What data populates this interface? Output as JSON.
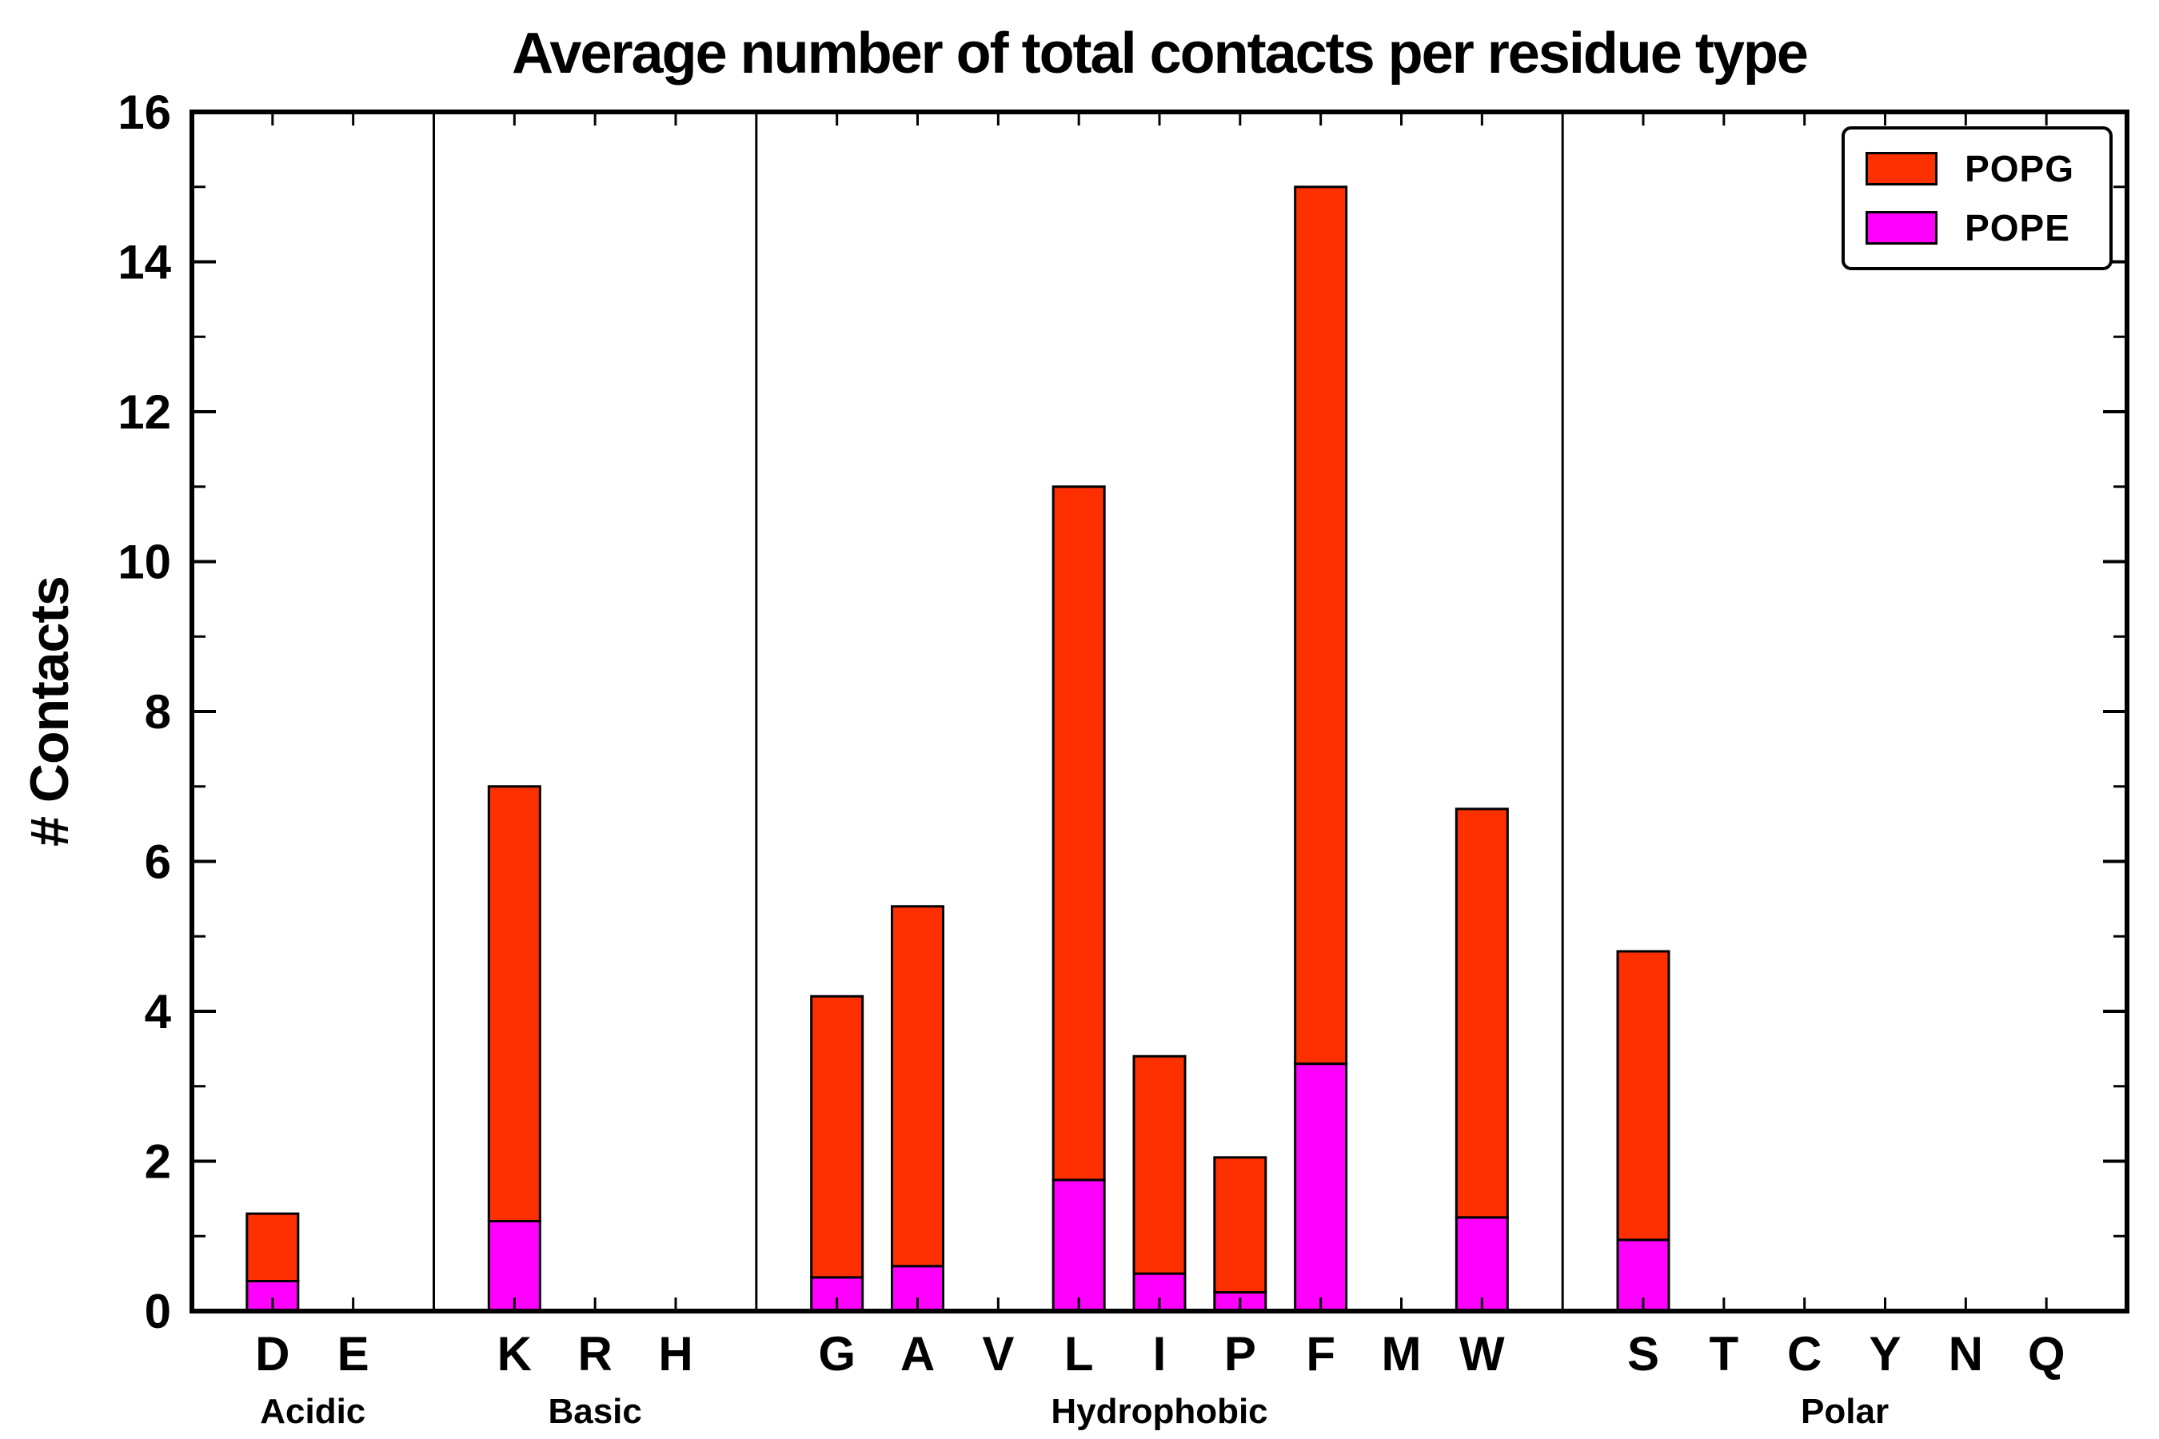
{
  "chart_data": {
    "type": "bar",
    "stacked": true,
    "title": "Average number of total contacts per residue type",
    "xlabel": "",
    "ylabel": "# Contacts",
    "ylim": [
      0,
      16
    ],
    "ytick_major_step": 2,
    "ytick_minor_step": 1,
    "grid": false,
    "categories": [
      "D",
      "E",
      "K",
      "R",
      "H",
      "G",
      "A",
      "V",
      "L",
      "I",
      "P",
      "F",
      "M",
      "W",
      "S",
      "T",
      "C",
      "Y",
      "N",
      "Q"
    ],
    "groups": [
      {
        "label": "Acidic",
        "residues": [
          "D",
          "E"
        ]
      },
      {
        "label": "Basic",
        "residues": [
          "K",
          "R",
          "H"
        ]
      },
      {
        "label": "Hydrophobic",
        "residues": [
          "G",
          "A",
          "V",
          "L",
          "I",
          "P",
          "F",
          "M",
          "W"
        ]
      },
      {
        "label": "Polar",
        "residues": [
          "S",
          "T",
          "C",
          "Y",
          "N",
          "Q"
        ]
      }
    ],
    "series": [
      {
        "name": "POPE",
        "color": "#ff00ff",
        "values": [
          0.4,
          0,
          1.2,
          0,
          0,
          0.45,
          0.6,
          0,
          1.75,
          0.5,
          0.25,
          3.3,
          0,
          1.25,
          0.95,
          0,
          0,
          0,
          0,
          0
        ]
      },
      {
        "name": "POPG",
        "color": "#ff3000",
        "values": [
          0.9,
          0,
          5.8,
          0,
          0,
          3.75,
          4.8,
          0,
          9.25,
          2.9,
          1.8,
          11.7,
          0,
          5.45,
          3.85,
          0,
          0,
          0,
          0,
          0
        ]
      }
    ],
    "totals": [
      1.3,
      0,
      7.0,
      0,
      0,
      4.2,
      5.4,
      0,
      11.0,
      3.4,
      2.05,
      15.0,
      0,
      6.7,
      4.8,
      0,
      0,
      0,
      0,
      0
    ],
    "legend": {
      "position": "upper right",
      "entries": [
        {
          "label": "POPG",
          "color": "#ff3000"
        },
        {
          "label": "POPE",
          "color": "#ff00ff"
        }
      ]
    }
  }
}
